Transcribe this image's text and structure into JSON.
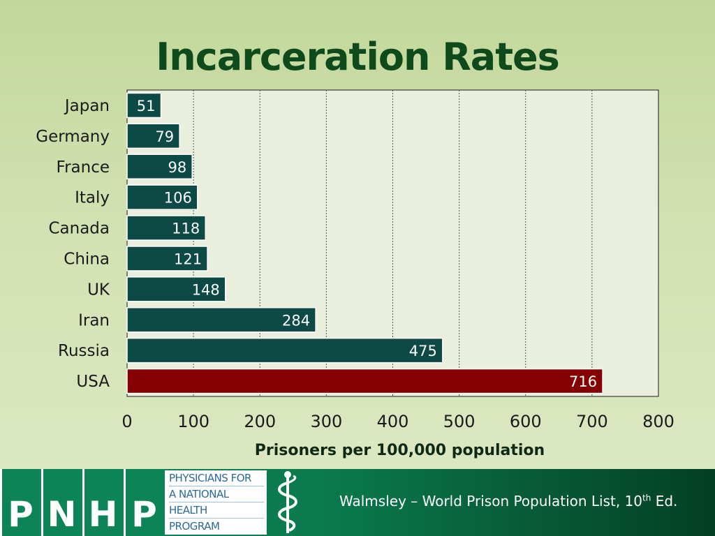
{
  "slide": {
    "title": "Incarceration Rates",
    "citation_main": "Walmsley – World Prison Population List, 10",
    "citation_sup": "th",
    "citation_end": " Ed."
  },
  "logo": {
    "letters": [
      "P",
      "N",
      "H",
      "P"
    ],
    "text_lines": [
      "PHYSICIANS FOR",
      "A NATIONAL",
      "HEALTH",
      "PROGRAM"
    ],
    "icon": "caduceus-icon"
  },
  "colors": {
    "bar_default": "#0d4a45",
    "bar_highlight": "#850000",
    "plot_bg": "#eaeedd",
    "title": "#0e4a1c"
  },
  "chart_data": {
    "type": "bar",
    "orientation": "horizontal",
    "categories": [
      "Japan",
      "Germany",
      "France",
      "Italy",
      "Canada",
      "China",
      "UK",
      "Iran",
      "Russia",
      "USA"
    ],
    "values": [
      51,
      79,
      98,
      106,
      118,
      121,
      148,
      284,
      475,
      716
    ],
    "highlight": "USA",
    "xlabel": "Prisoners per 100,000 population",
    "xlim": [
      0,
      800
    ],
    "xticks": [
      0,
      100,
      200,
      300,
      400,
      500,
      600,
      700,
      800
    ],
    "grid": "vertical dashed",
    "data_labels": true
  }
}
